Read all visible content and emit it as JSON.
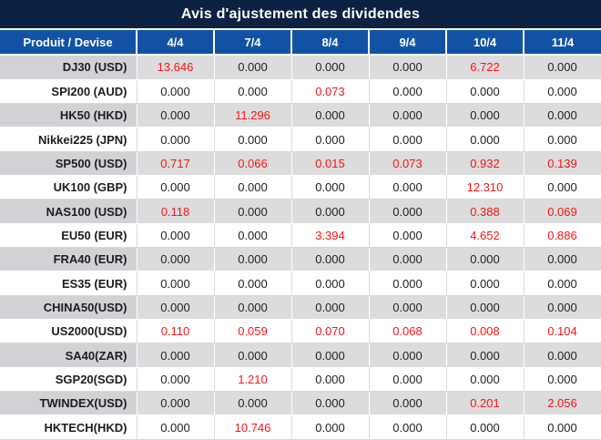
{
  "title": "Avis d'ajustement des dividendes",
  "table": {
    "product_header": "Produit / Devise",
    "date_headers": [
      "4/4",
      "7/4",
      "8/4",
      "9/4",
      "10/4",
      "11/4"
    ],
    "rows": [
      {
        "product": "DJ30 (USD)",
        "values": [
          "13.646",
          "0.000",
          "0.000",
          "0.000",
          "6.722",
          "0.000"
        ]
      },
      {
        "product": "SPI200 (AUD)",
        "values": [
          "0.000",
          "0.000",
          "0.073",
          "0.000",
          "0.000",
          "0.000"
        ]
      },
      {
        "product": "HK50 (HKD)",
        "values": [
          "0.000",
          "11.296",
          "0.000",
          "0.000",
          "0.000",
          "0.000"
        ]
      },
      {
        "product": "Nikkei225 (JPN)",
        "values": [
          "0.000",
          "0.000",
          "0.000",
          "0.000",
          "0.000",
          "0.000"
        ]
      },
      {
        "product": "SP500 (USD)",
        "values": [
          "0.717",
          "0.066",
          "0.015",
          "0.073",
          "0.932",
          "0.139"
        ]
      },
      {
        "product": "UK100 (GBP)",
        "values": [
          "0.000",
          "0.000",
          "0.000",
          "0.000",
          "12.310",
          "0.000"
        ]
      },
      {
        "product": "NAS100 (USD)",
        "values": [
          "0.118",
          "0.000",
          "0.000",
          "0.000",
          "0.388",
          "0.069"
        ]
      },
      {
        "product": "EU50 (EUR)",
        "values": [
          "0.000",
          "0.000",
          "3.394",
          "0.000",
          "4.652",
          "0.886"
        ]
      },
      {
        "product": "FRA40 (EUR)",
        "values": [
          "0.000",
          "0.000",
          "0.000",
          "0.000",
          "0.000",
          "0.000"
        ]
      },
      {
        "product": "ES35 (EUR)",
        "values": [
          "0.000",
          "0.000",
          "0.000",
          "0.000",
          "0.000",
          "0.000"
        ]
      },
      {
        "product": "CHINA50(USD)",
        "values": [
          "0.000",
          "0.000",
          "0.000",
          "0.000",
          "0.000",
          "0.000"
        ]
      },
      {
        "product": "US2000(USD)",
        "values": [
          "0.110",
          "0.059",
          "0.070",
          "0.068",
          "0.008",
          "0.104"
        ]
      },
      {
        "product": "SA40(ZAR)",
        "values": [
          "0.000",
          "0.000",
          "0.000",
          "0.000",
          "0.000",
          "0.000"
        ]
      },
      {
        "product": "SGP20(SGD)",
        "values": [
          "0.000",
          "1.210",
          "0.000",
          "0.000",
          "0.000",
          "0.000"
        ]
      },
      {
        "product": "TWINDEX(USD)",
        "values": [
          "0.000",
          "0.000",
          "0.000",
          "0.000",
          "0.201",
          "2.056"
        ]
      },
      {
        "product": "HKTECH(HKD)",
        "values": [
          "0.000",
          "10.746",
          "0.000",
          "0.000",
          "0.000",
          "0.000"
        ]
      }
    ]
  },
  "colors": {
    "title_bg": "#0d2142",
    "header_bg": "#1252a4",
    "header_text": "#ffffff",
    "stripe_value_bg": "#dcdcdc",
    "stripe_product_bg": "#d2d2d6",
    "row_white_bg": "#ffffff",
    "border_light": "#d9d9d9",
    "text_dark": "#222222",
    "highlight_red": "#fa1414"
  }
}
